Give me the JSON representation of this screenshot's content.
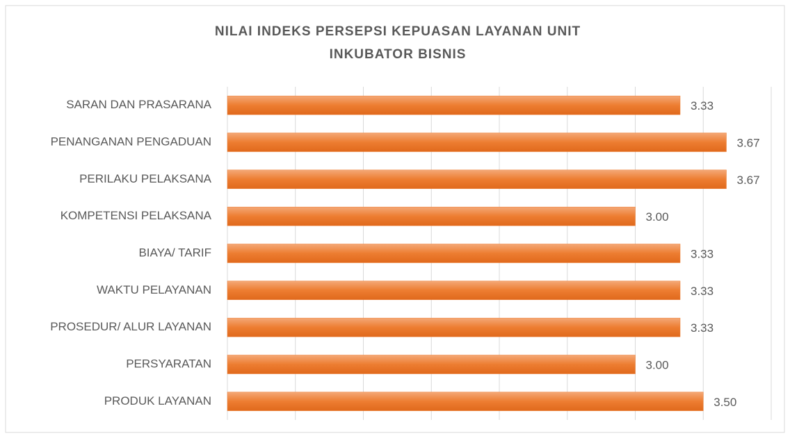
{
  "chart_data": {
    "type": "hbar",
    "title": [
      "NILAI INDEKS PERSEPSI KEPUASAN LAYANAN UNIT",
      "INKUBATOR BISNIS"
    ],
    "categories": [
      "SARAN DAN PRASARANA",
      "PENANGANAN PENGADUAN",
      "PERILAKU PELAKSANA",
      "KOMPETENSI PELAKSANA",
      "BIAYA/ TARIF",
      "WAKTU PELAYANAN",
      "PROSEDUR/ ALUR LAYANAN",
      "PERSYARATAN",
      "PRODUK LAYANAN"
    ],
    "values": [
      3.33,
      3.67,
      3.67,
      3,
      3.33,
      3.33,
      3.33,
      3,
      3.5
    ],
    "value_labels": [
      "3.33",
      "3.67",
      "3.67",
      "3.00",
      "3.33",
      "3.33",
      "3.33",
      "3.00",
      "3.50"
    ],
    "color": "#ed7d31",
    "xlim": [
      0,
      4
    ],
    "xticks": [
      0,
      0.5,
      1,
      1.5,
      2,
      2.5,
      3,
      3.5,
      4
    ],
    "grid": true
  }
}
